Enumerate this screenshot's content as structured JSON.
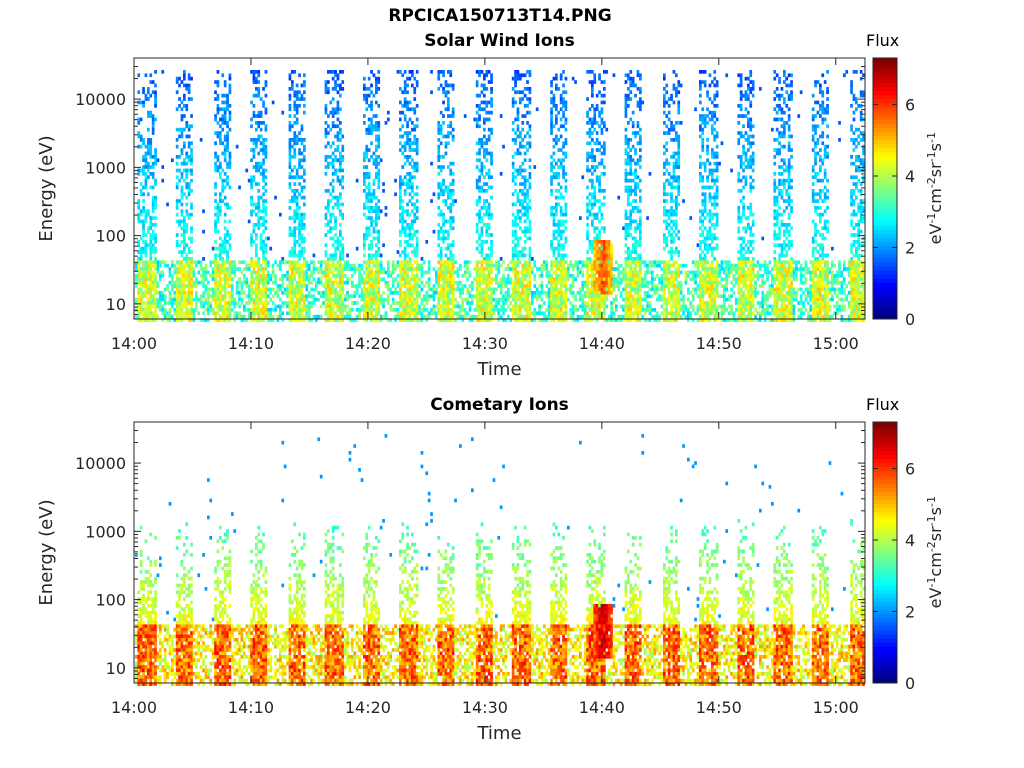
{
  "figure": {
    "title": "RPCICA150713T14.PNG"
  },
  "colorbar": {
    "title": "Flux",
    "unit_base": "eV",
    "unit_parts": [
      {
        "base": "eV",
        "exp": "-1"
      },
      {
        "base": "cm",
        "exp": "-2"
      },
      {
        "base": "sr",
        "exp": "-1"
      },
      {
        "base": "s",
        "exp": "-1"
      }
    ],
    "ticks": [
      "0",
      "2",
      "4",
      "6"
    ],
    "range": [
      0,
      7.3
    ]
  },
  "chart_data": [
    {
      "type": "heatmap",
      "title": "Solar Wind Ions",
      "xlabel": "Time",
      "ylabel": "Energy (eV)",
      "x_ticks": [
        "14:00",
        "14:10",
        "14:20",
        "14:30",
        "14:40",
        "14:50",
        "15:00"
      ],
      "x_range_minutes": [
        0,
        62.5
      ],
      "y_ticks": [
        "10",
        "100",
        "1000",
        "10000"
      ],
      "y_range": [
        6,
        40000
      ],
      "y_scale": "log",
      "sweep_period_minutes": 3.2,
      "low_energy_band_eV": [
        10,
        45
      ],
      "typical_flux_low_band": 4.2,
      "typical_flux_high_energy": 1.5,
      "peak": {
        "time": "14:40",
        "energy_eV": 35,
        "flux": 6.2
      }
    },
    {
      "type": "heatmap",
      "title": "Cometary Ions",
      "xlabel": "Time",
      "ylabel": "Energy (eV)",
      "x_ticks": [
        "14:00",
        "14:10",
        "14:20",
        "14:30",
        "14:40",
        "14:50",
        "15:00"
      ],
      "x_range_minutes": [
        0,
        62.5
      ],
      "y_ticks": [
        "10",
        "100",
        "1000",
        "10000"
      ],
      "y_range": [
        6,
        40000
      ],
      "y_scale": "log",
      "sweep_period_minutes": 3.2,
      "low_energy_band_eV": [
        10,
        45
      ],
      "typical_flux_low_band": 5.6,
      "typical_flux_high_energy": 2.0,
      "peak": {
        "time": "14:40",
        "energy_eV": 35,
        "flux": 7.2
      }
    }
  ]
}
